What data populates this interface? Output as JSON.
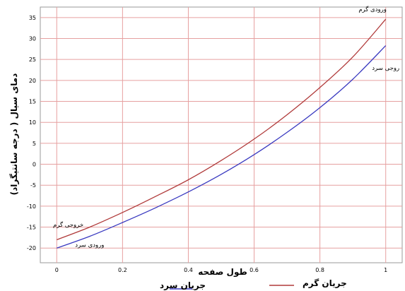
{
  "chart_data": {
    "type": "line",
    "xlabel": "طول صفحه",
    "ylabel": "دمای سیال ( درجه سانتیگراد)",
    "xlim": [
      -0.05,
      1.05
    ],
    "ylim": [
      -23.5,
      37.5
    ],
    "xticks": [
      0,
      0.2,
      0.4,
      0.6,
      0.8,
      1
    ],
    "xtick_labels": [
      "0",
      "0.2",
      "0.4",
      "0.6",
      "0.8",
      "1"
    ],
    "yticks": [
      -20,
      -15,
      -10,
      -5,
      0,
      5,
      10,
      15,
      20,
      25,
      30,
      35
    ],
    "ytick_labels": [
      "-20",
      "-15",
      "-10",
      "-5",
      "0",
      "5",
      "10",
      "15",
      "20",
      "25",
      "30",
      "35"
    ],
    "grid": true,
    "legend_position": "bottom",
    "series": [
      {
        "name": "جریان گرم",
        "color": "#b03a3a",
        "x": [
          0,
          0.1,
          0.2,
          0.3,
          0.4,
          0.5,
          0.6,
          0.7,
          0.8,
          0.9,
          1
        ],
        "y": [
          -18,
          -15,
          -11.5,
          -7.7,
          -3.7,
          0.9,
          6,
          11.8,
          18.3,
          25.6,
          34.6
        ]
      },
      {
        "name": "جریان سرد",
        "color": "#3a3ac0",
        "x": [
          0,
          0.1,
          0.2,
          0.3,
          0.4,
          0.5,
          0.6,
          0.7,
          0.8,
          0.9,
          1
        ],
        "y": [
          -20,
          -17.2,
          -13.9,
          -10.4,
          -6.6,
          -2.4,
          2.3,
          7.6,
          13.5,
          20.3,
          28.3
        ]
      }
    ],
    "annotations": [
      {
        "text": "ورودی گرم",
        "x": 0.96,
        "y": 36.5
      },
      {
        "text": "روجی سرد",
        "x": 1.0,
        "y": 22.5
      },
      {
        "text": "خروجی گرم",
        "x": 0.035,
        "y": -14.9
      },
      {
        "text": "ورودی سرد",
        "x": 0.1,
        "y": -19.7
      }
    ]
  }
}
